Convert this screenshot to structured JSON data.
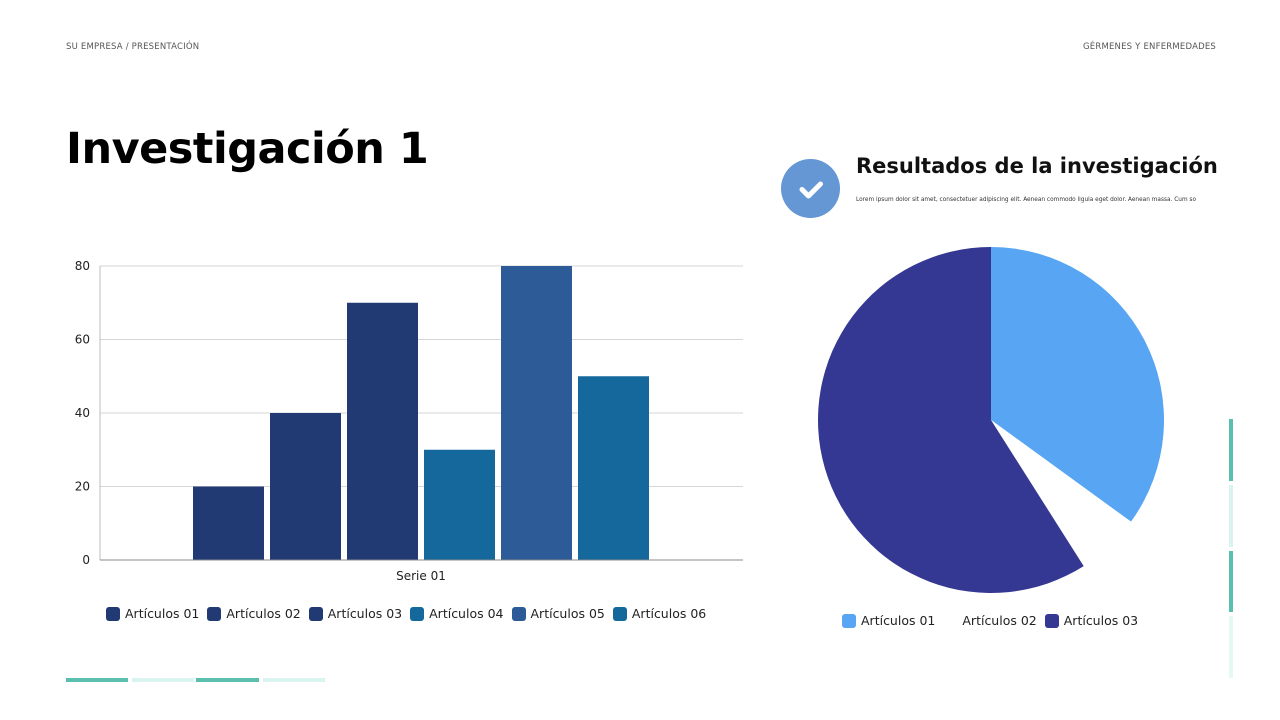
{
  "header": {
    "left": "SU EMPRESA / PRESENTACIÓN",
    "right": "GÉRMENES Y ENFERMEDADES"
  },
  "title": "Investigación 1",
  "results": {
    "icon": "check-icon",
    "title": "Resultados de la investigación",
    "body": "Lorem ipsum dolor sit amet, consectetuer adipiscing elit. Aenean commodo ligula eget dolor. Aenean massa. Cum so"
  },
  "colors": {
    "accent_teal": "#5bbfb0",
    "accent_teal_light": "#d9f4ef",
    "check_circle": "#6497d3"
  },
  "chart_data": [
    {
      "type": "bar",
      "title": "",
      "xlabel": "",
      "ylabel": "",
      "categories": [
        "Serie 01"
      ],
      "series": [
        {
          "name": "Artículos 01",
          "values": [
            20
          ],
          "color": "#213a73"
        },
        {
          "name": "Artículos 02",
          "values": [
            40
          ],
          "color": "#213a73"
        },
        {
          "name": "Artículos 03",
          "values": [
            70
          ],
          "color": "#213a73"
        },
        {
          "name": "Artículos 04",
          "values": [
            30
          ],
          "color": "#15689b"
        },
        {
          "name": "Artículos 05",
          "values": [
            80
          ],
          "color": "#2d5b98"
        },
        {
          "name": "Artículos 06",
          "values": [
            50
          ],
          "color": "#15689b"
        }
      ],
      "yticks": [
        0,
        20,
        40,
        60,
        80
      ],
      "ylim": [
        0,
        80
      ],
      "grid": true,
      "legend_position": "bottom"
    },
    {
      "type": "pie",
      "title": "",
      "series": [
        {
          "name": "Artículos 01",
          "value": 35,
          "color": "#58a5f3"
        },
        {
          "name": "Artículos 02",
          "value": 6,
          "color": "#ffffff"
        },
        {
          "name": "Artículos 03",
          "value": 59,
          "color": "#343893"
        }
      ],
      "legend_position": "bottom"
    }
  ]
}
